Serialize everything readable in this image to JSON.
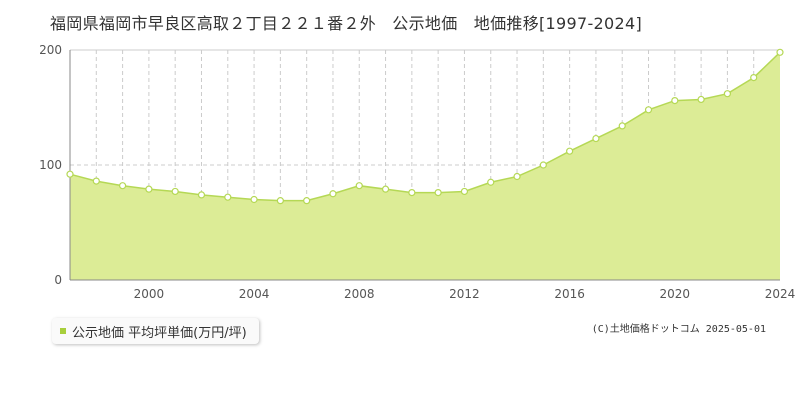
{
  "title": "福岡県福岡市早良区高取２丁目２２１番２外　公示地価　地価推移[1997-2024]",
  "legend": {
    "label": "公示地価 平均坪単価(万円/坪)"
  },
  "copyright": "(C)土地価格ドットコム 2025-05-01",
  "colors": {
    "area_fill": "#dcec96",
    "line": "#b5d855",
    "point_fill": "#ffffff",
    "grid": "#cccccc",
    "legend_marker": "#a8cf3c"
  },
  "chart_data": {
    "type": "area",
    "xlim": [
      1997,
      2024
    ],
    "ylim": [
      0,
      200
    ],
    "xticks": [
      "2000",
      "2004",
      "2008",
      "2012",
      "2016",
      "2020",
      "2024"
    ],
    "yticks": [
      "0",
      "100",
      "200"
    ],
    "grid": true,
    "series": [
      {
        "x": [
          1997,
          1998,
          1999,
          2000,
          2001,
          2002,
          2003,
          2004,
          2005,
          2006,
          2007,
          2008,
          2009,
          2010,
          2011,
          2012,
          2013,
          2014,
          2015,
          2016,
          2017,
          2018,
          2019,
          2020,
          2021,
          2022,
          2023,
          2024
        ],
        "values": [
          92,
          86,
          82,
          79,
          77,
          74,
          72,
          70,
          69,
          69,
          75,
          82,
          79,
          76,
          76,
          77,
          85,
          90,
          100,
          112,
          123,
          134,
          148,
          156,
          157,
          162,
          176,
          198
        ]
      }
    ]
  }
}
